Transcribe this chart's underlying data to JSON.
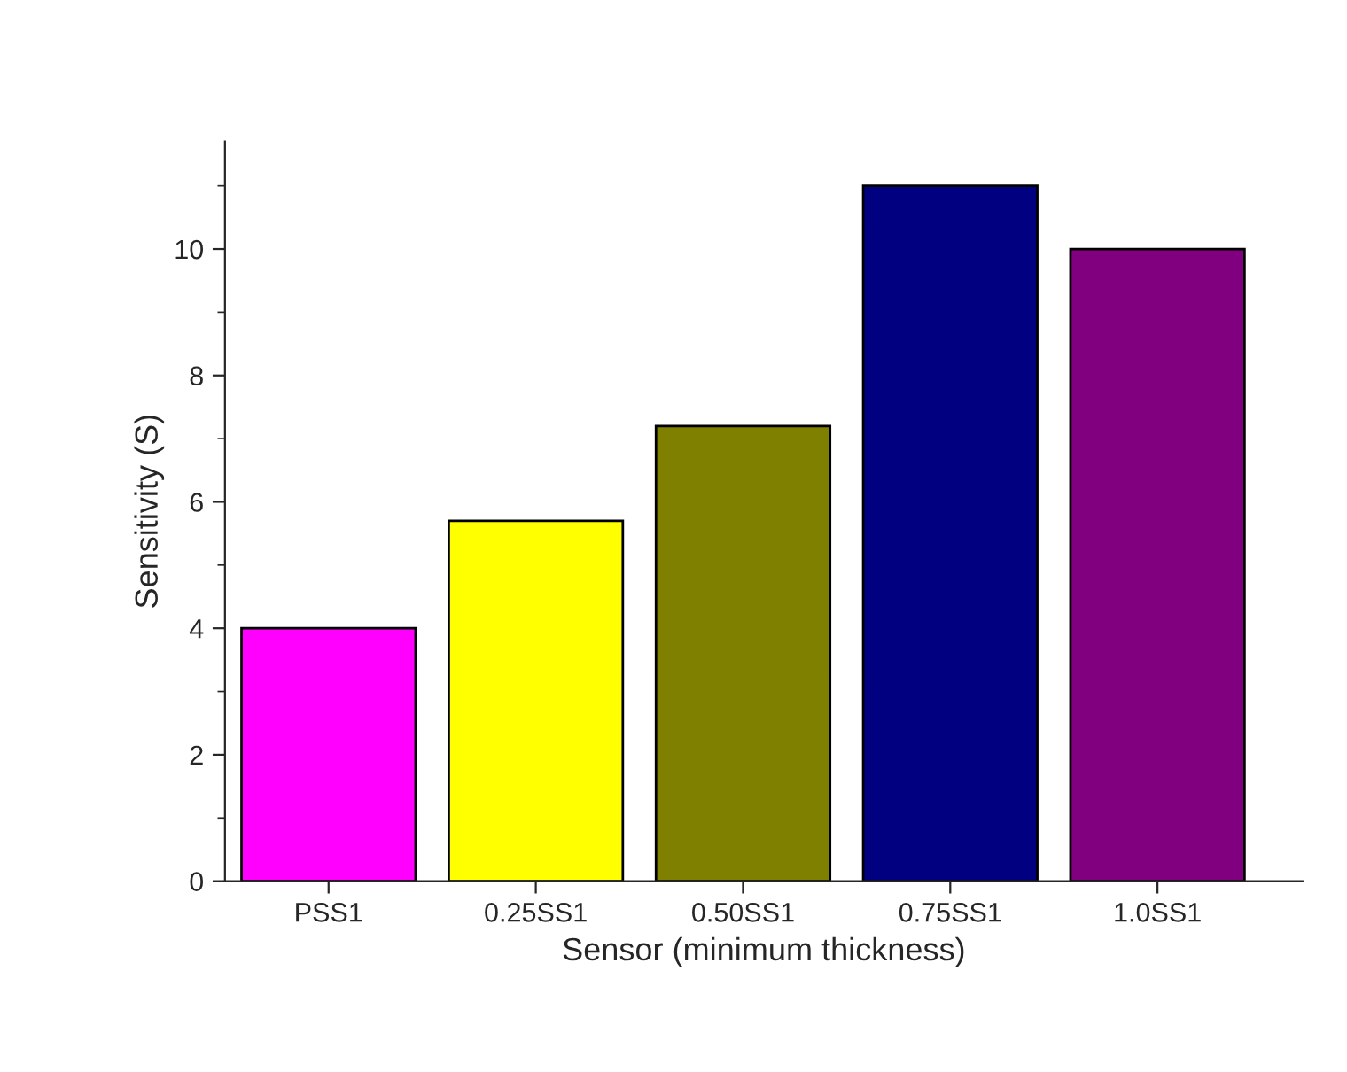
{
  "chart_data": {
    "type": "bar",
    "xlabel": "Sensor (minimum thickness)",
    "ylabel": "Sensitivity (S)",
    "categories": [
      "PSS1",
      "0.25SS1",
      "0.50SS1",
      "0.75SS1",
      "1.0SS1"
    ],
    "values": [
      4.0,
      5.7,
      7.2,
      11.0,
      10.0
    ],
    "colors": [
      "#ff00ff",
      "#ffff00",
      "#808000",
      "#000080",
      "#800080"
    ],
    "ylim": [
      0,
      11.7
    ],
    "yticks": [
      0,
      2,
      4,
      6,
      8,
      10
    ],
    "grid": false,
    "legend": false
  }
}
